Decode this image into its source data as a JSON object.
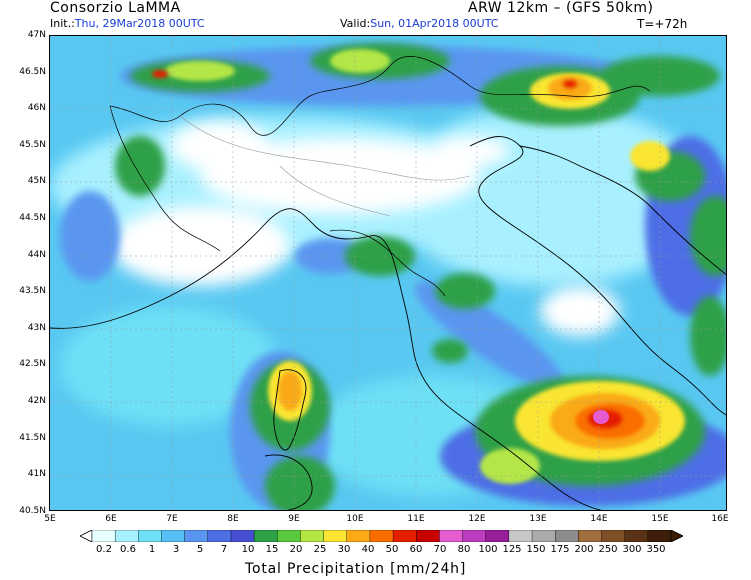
{
  "header": {
    "org": "Consorzio LaMMA",
    "model": "ARW 12km – (GFS 50km)",
    "init_label": "Init.:",
    "init_value": "Thu, 29Mar2018 00UTC",
    "valid_label": "Valid:",
    "valid_value": "Sun, 01Apr2018 00UTC",
    "lead_time": "T=+72h"
  },
  "axes": {
    "lat_labels": [
      "47N",
      "46.5N",
      "46N",
      "45.5N",
      "45N",
      "44.5N",
      "44N",
      "43.5N",
      "43N",
      "42.5N",
      "42N",
      "41.5N",
      "41N",
      "40.5N"
    ],
    "lon_labels": [
      "5E",
      "6E",
      "7E",
      "8E",
      "9E",
      "10E",
      "11E",
      "12E",
      "13E",
      "14E",
      "15E",
      "16E"
    ]
  },
  "colorbar": {
    "labels": [
      "0.2",
      "0.6",
      "1",
      "3",
      "5",
      "7",
      "10",
      "15",
      "20",
      "25",
      "30",
      "40",
      "50",
      "60",
      "70",
      "80",
      "100",
      "125",
      "150",
      "175",
      "200",
      "250",
      "300",
      "350"
    ],
    "colors": [
      "#e6ffff",
      "#a8f0ff",
      "#6ee0f5",
      "#56c0f5",
      "#5a96f0",
      "#4e6ee6",
      "#4650d2",
      "#2ea046",
      "#5ac83c",
      "#b4e646",
      "#fae632",
      "#faaa14",
      "#fa6e00",
      "#e61e00",
      "#c80000",
      "#e65ad2",
      "#be3cbe",
      "#961e96",
      "#c8c8c8",
      "#aaaaaa",
      "#8c8c8c",
      "#a06e3c",
      "#7d5028",
      "#5a3214",
      "#3c1e08"
    ],
    "caption": "Total Precipitation [mm/24h]"
  },
  "icons": {
    "left_arrow": "colorbar-low-arrow-icon",
    "right_arrow": "colorbar-high-arrow-icon"
  }
}
